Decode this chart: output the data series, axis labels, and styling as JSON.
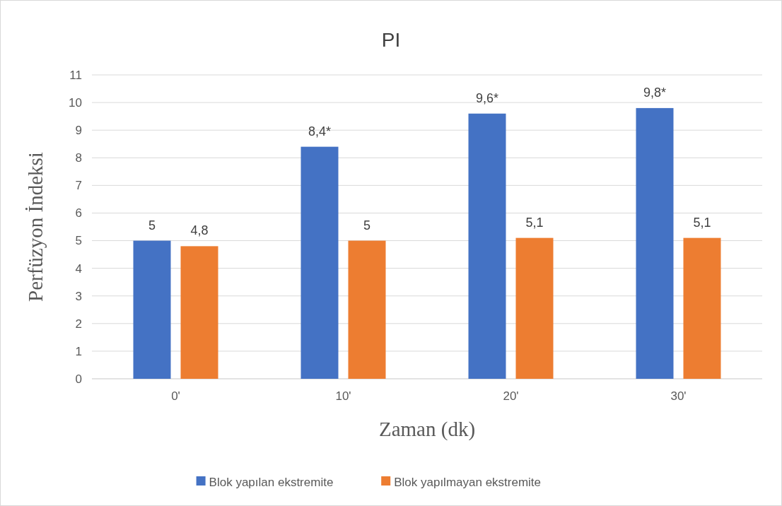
{
  "chart_data": {
    "type": "bar",
    "title": "PI",
    "xlabel": "Zaman (dk)",
    "ylabel": "Perfüzyon İndeksi",
    "categories": [
      "0'",
      "10'",
      "20'",
      "30'"
    ],
    "series": [
      {
        "name": "Blok yapılan ekstremite",
        "color": "#4472c4",
        "values": [
          5,
          8.4,
          9.6,
          9.8
        ],
        "value_labels": [
          "5",
          "8,4*",
          "9,6*",
          "9,8*"
        ]
      },
      {
        "name": "Blok yapılmayan ekstremite",
        "color": "#ed7d31",
        "values": [
          4.8,
          5,
          5.1,
          5.1
        ],
        "value_labels": [
          "4,8",
          "5",
          "5,1",
          "5,1"
        ]
      }
    ],
    "ylim": [
      0,
      11
    ],
    "yticks": [
      0,
      1,
      2,
      3,
      4,
      5,
      6,
      7,
      8,
      9,
      10,
      11
    ],
    "grid": "y",
    "legend": "bottom"
  }
}
